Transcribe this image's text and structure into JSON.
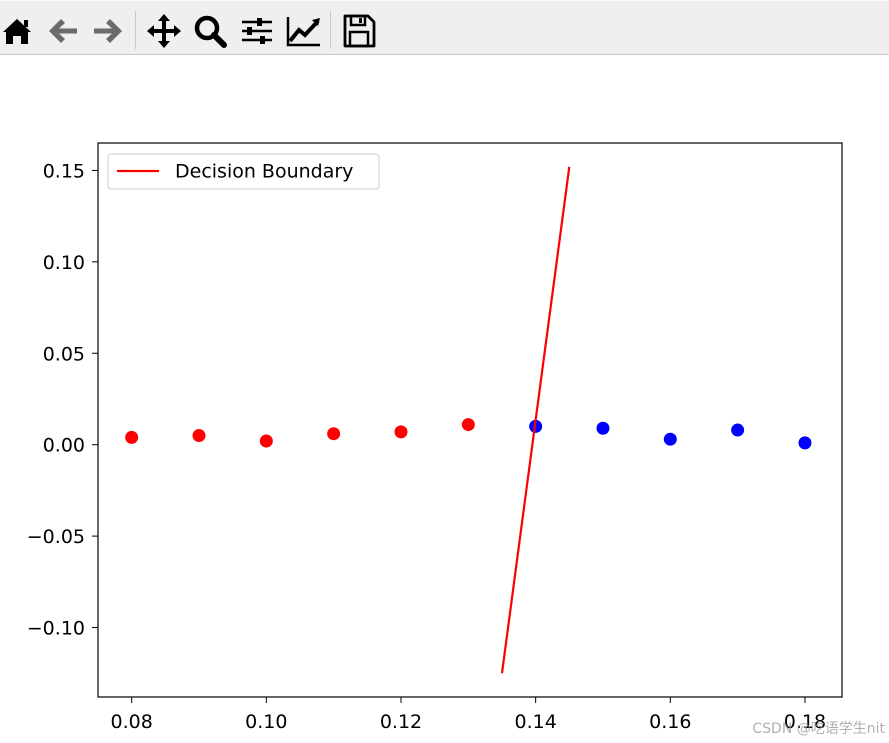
{
  "toolbar": {
    "buttons": [
      {
        "name": "home-icon"
      },
      {
        "name": "back-icon"
      },
      {
        "name": "forward-icon"
      },
      {
        "name": "pan-icon"
      },
      {
        "name": "zoom-icon"
      },
      {
        "name": "configure-subplots-icon"
      },
      {
        "name": "edit-axis-icon"
      },
      {
        "name": "save-icon"
      }
    ]
  },
  "chart_data": {
    "type": "scatter",
    "title": "",
    "xlabel": "",
    "ylabel": "",
    "xlim": [
      0.075,
      0.1855
    ],
    "ylim": [
      -0.138,
      0.165
    ],
    "xticks": [
      0.08,
      0.1,
      0.12,
      0.14,
      0.16,
      0.18
    ],
    "xtick_labels": [
      "0.08",
      "0.10",
      "0.12",
      "0.14",
      "0.16",
      "0.18"
    ],
    "yticks": [
      0.15,
      0.1,
      0.05,
      0.0,
      -0.05,
      -0.1
    ],
    "ytick_labels": [
      "0.15",
      "0.10",
      "0.05",
      "0.00",
      "−0.05",
      "−0.10"
    ],
    "grid": false,
    "legend": {
      "position": "top-left",
      "entries": [
        "Decision Boundary"
      ]
    },
    "series": [
      {
        "kind": "scatter",
        "color": "#ff0000",
        "x": [
          0.08,
          0.09,
          0.1,
          0.11,
          0.12,
          0.13
        ],
        "y": [
          0.004,
          0.005,
          0.002,
          0.006,
          0.007,
          0.011
        ]
      },
      {
        "kind": "scatter",
        "color": "#0000ff",
        "x": [
          0.14,
          0.15,
          0.16,
          0.17,
          0.18
        ],
        "y": [
          0.01,
          0.009,
          0.003,
          0.008,
          0.001
        ]
      },
      {
        "kind": "line",
        "name": "Decision Boundary",
        "color": "#ff0000",
        "x": [
          0.135,
          0.145
        ],
        "y": [
          -0.125,
          0.152
        ]
      }
    ]
  },
  "watermark": "CSDN @吃语学生nit"
}
